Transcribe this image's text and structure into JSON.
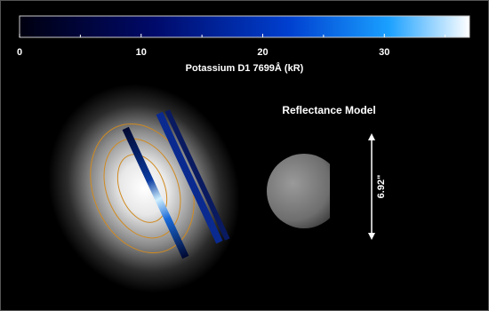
{
  "colorbar": {
    "label": "Potassium D1 7699Å (kR)",
    "range": [
      0,
      37
    ],
    "ticks": [
      0,
      10,
      20,
      30
    ],
    "minor_ticks": [
      5,
      15,
      25,
      35
    ]
  },
  "model_label": "Reflectance Model",
  "scale_label": "6.92\""
}
